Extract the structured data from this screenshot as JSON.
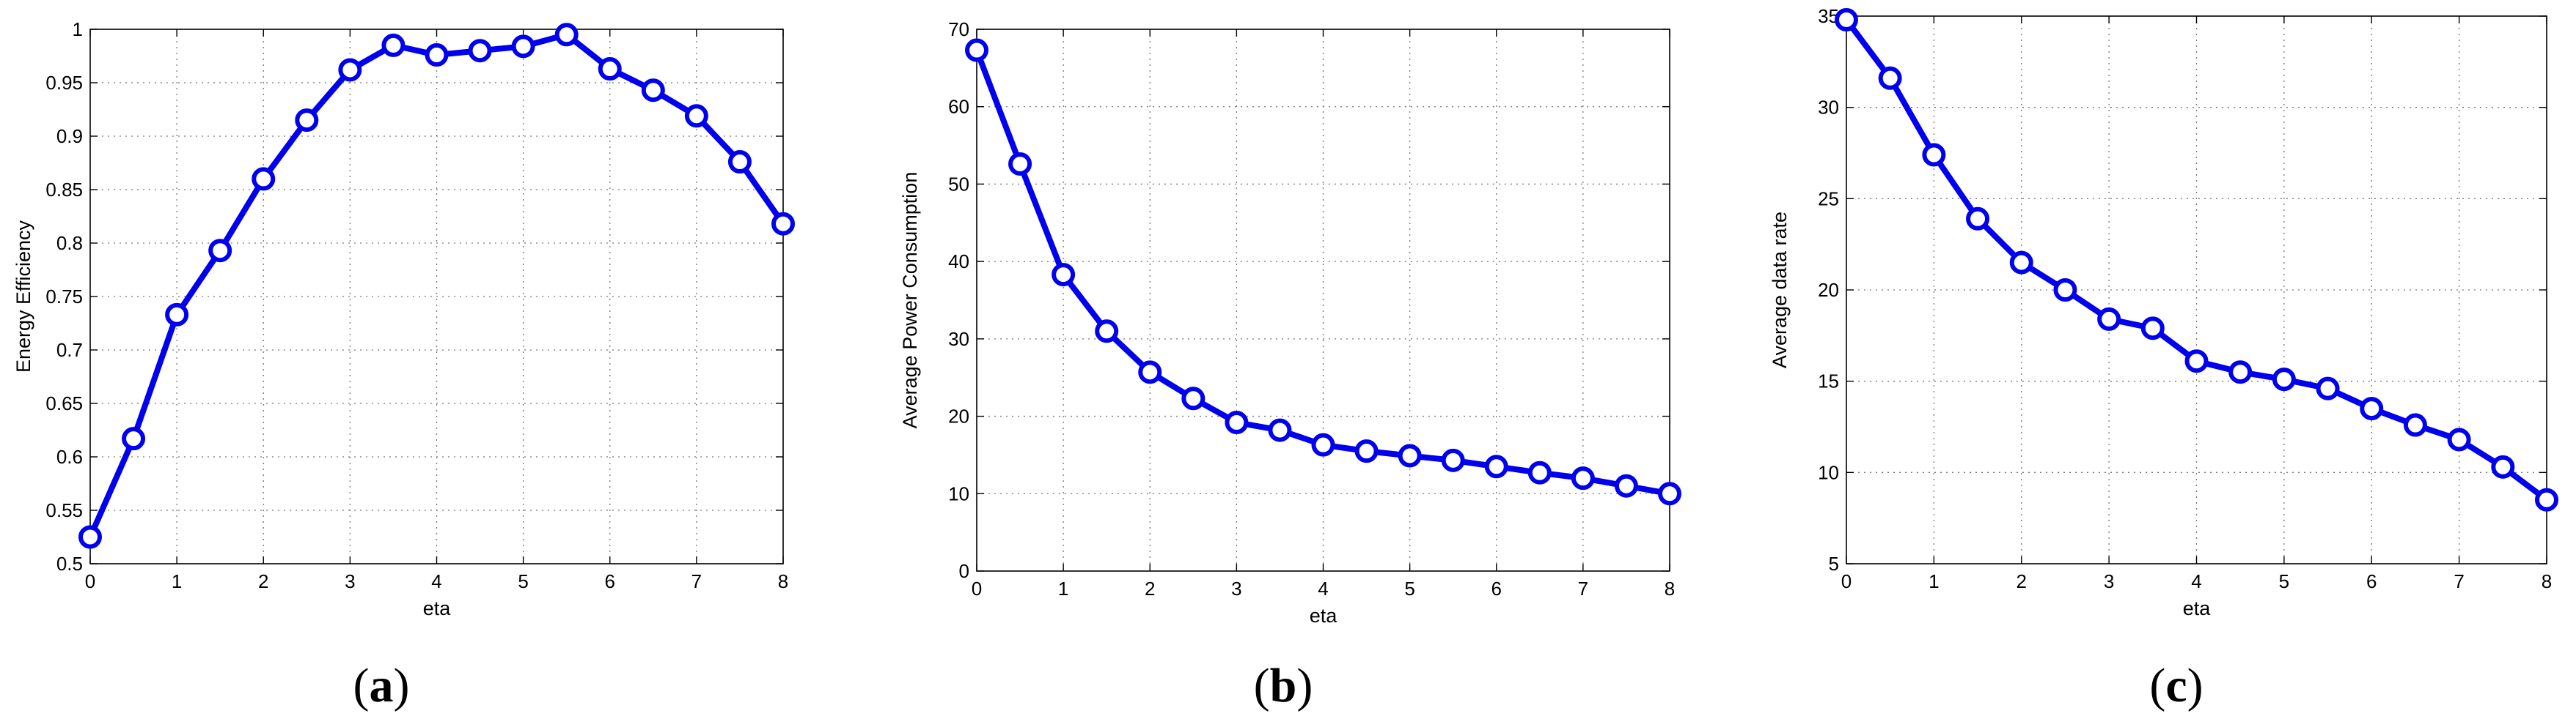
{
  "figure": {
    "panels": [
      {
        "caption_letter": "a"
      },
      {
        "caption_letter": "b"
      },
      {
        "caption_letter": "c"
      }
    ]
  },
  "chart_data": [
    {
      "type": "line",
      "title": "",
      "xlabel": "eta",
      "ylabel": "Energy Efficiency",
      "xlim": [
        0,
        8
      ],
      "ylim": [
        0.5,
        1
      ],
      "xticks": [
        "0",
        "1",
        "2",
        "3",
        "4",
        "5",
        "6",
        "7",
        "8"
      ],
      "yticks": [
        "0.5",
        "0.55",
        "0.6",
        "0.65",
        "0.7",
        "0.75",
        "0.8",
        "0.85",
        "0.9",
        "0.95",
        "1"
      ],
      "grid": true,
      "marker": "circle",
      "color": "#0000ee",
      "x": [
        0,
        0.5,
        1,
        1.5,
        2,
        2.5,
        3,
        3.5,
        4,
        4.5,
        5,
        5.5,
        6,
        6.5,
        7,
        7.5,
        8
      ],
      "y": [
        0.525,
        0.617,
        0.733,
        0.793,
        0.86,
        0.915,
        0.962,
        0.985,
        0.976,
        0.98,
        0.984,
        0.995,
        0.963,
        0.943,
        0.919,
        0.876,
        0.818
      ]
    },
    {
      "type": "line",
      "title": "",
      "xlabel": "eta",
      "ylabel": "Average Power Consumption",
      "xlim": [
        0,
        8
      ],
      "ylim": [
        0,
        70
      ],
      "xticks": [
        "0",
        "1",
        "2",
        "3",
        "4",
        "5",
        "6",
        "7",
        "8"
      ],
      "yticks": [
        "0",
        "10",
        "20",
        "30",
        "40",
        "50",
        "60",
        "70"
      ],
      "grid": true,
      "marker": "circle",
      "color": "#0000ee",
      "x": [
        0,
        0.5,
        1,
        1.5,
        2,
        2.5,
        3,
        3.5,
        4,
        4.5,
        5,
        5.5,
        6,
        6.5,
        7,
        7.5,
        8
      ],
      "y": [
        67.3,
        52.6,
        38.3,
        31.0,
        25.7,
        22.3,
        19.2,
        18.2,
        16.3,
        15.5,
        14.9,
        14.3,
        13.5,
        12.7,
        12.0,
        11.0,
        10.0
      ]
    },
    {
      "type": "line",
      "title": "",
      "xlabel": "eta",
      "ylabel": "Average data rate",
      "xlim": [
        0,
        8
      ],
      "ylim": [
        5,
        35
      ],
      "xticks": [
        "0",
        "1",
        "2",
        "3",
        "4",
        "5",
        "6",
        "7",
        "8"
      ],
      "yticks": [
        "5",
        "10",
        "15",
        "20",
        "25",
        "30",
        "35"
      ],
      "grid": true,
      "marker": "circle",
      "color": "#0000ee",
      "x": [
        0,
        0.5,
        1,
        1.5,
        2,
        2.5,
        3,
        3.5,
        4,
        4.5,
        5,
        5.5,
        6,
        6.5,
        7,
        7.5,
        8
      ],
      "y": [
        34.8,
        31.6,
        27.4,
        23.9,
        21.5,
        20.0,
        18.4,
        17.9,
        16.1,
        15.5,
        15.1,
        14.6,
        13.5,
        12.6,
        11.8,
        10.3,
        8.5
      ]
    }
  ]
}
